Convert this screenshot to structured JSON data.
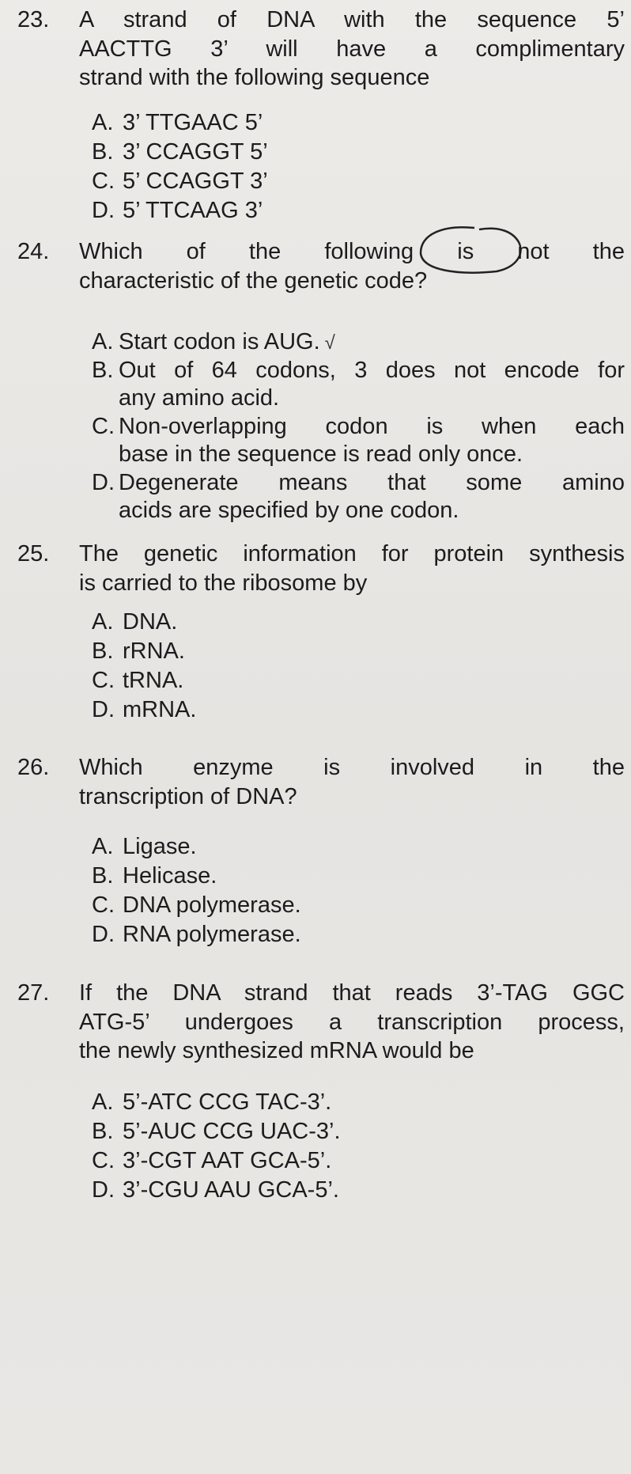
{
  "questions": [
    {
      "number": "23.",
      "stem": [
        "A strand of DNA with the sequence 5’",
        "AACTTG 3’ will have a complimentary",
        "strand with the following sequence"
      ],
      "options": [
        {
          "letter": "A.",
          "lines": [
            "3’ TTGAAC 5’"
          ]
        },
        {
          "letter": "B.",
          "lines": [
            "3’ CCAGGT 5’"
          ]
        },
        {
          "letter": "C.",
          "lines": [
            "5’ CCAGGT 3’"
          ]
        },
        {
          "letter": "D.",
          "lines": [
            "5’ TTCAAG 3’"
          ]
        }
      ]
    },
    {
      "number": "24.",
      "stem": [
        "Which of the following is not the",
        "characteristic of the genetic code?"
      ],
      "options": [
        {
          "letter": "A.",
          "lines": [
            "Start codon is AUG."
          ],
          "mark": "√"
        },
        {
          "letter": "B.",
          "lines": [
            "Out of 64 codons, 3 does not encode for",
            "any amino acid."
          ]
        },
        {
          "letter": "C.",
          "lines": [
            "Non-overlapping codon is when each",
            "base in the sequence is read only once."
          ]
        },
        {
          "letter": "D.",
          "lines": [
            "Degenerate means that some amino",
            "acids are specified by one codon."
          ]
        }
      ]
    },
    {
      "number": "25.",
      "stem": [
        "The genetic information for protein synthesis",
        "is carried to the ribosome by"
      ],
      "options": [
        {
          "letter": "A.",
          "lines": [
            "DNA."
          ]
        },
        {
          "letter": "B.",
          "lines": [
            "rRNA."
          ]
        },
        {
          "letter": "C.",
          "lines": [
            "tRNA."
          ]
        },
        {
          "letter": "D.",
          "lines": [
            "mRNA."
          ]
        }
      ]
    },
    {
      "number": "26.",
      "stem": [
        "Which enzyme is involved in the",
        "transcription of DNA?"
      ],
      "options": [
        {
          "letter": "A.",
          "lines": [
            "Ligase."
          ]
        },
        {
          "letter": "B.",
          "lines": [
            "Helicase."
          ]
        },
        {
          "letter": "C.",
          "lines": [
            "DNA polymerase."
          ]
        },
        {
          "letter": "D.",
          "lines": [
            "RNA polymerase."
          ]
        }
      ]
    },
    {
      "number": "27.",
      "stem": [
        "If the DNA strand that reads 3’-TAG GGC",
        "ATG-5’ undergoes a transcription process,",
        "the newly synthesized mRNA would be"
      ],
      "options": [
        {
          "letter": "A.",
          "lines": [
            "5’-ATC CCG TAC-3’."
          ]
        },
        {
          "letter": "B.",
          "lines": [
            "5’-AUC CCG UAC-3’."
          ]
        },
        {
          "letter": "C.",
          "lines": [
            "3’-CGT AAT GCA-5’."
          ]
        },
        {
          "letter": "D.",
          "lines": [
            "3’-CGU AAU GCA-5’."
          ]
        }
      ]
    }
  ]
}
